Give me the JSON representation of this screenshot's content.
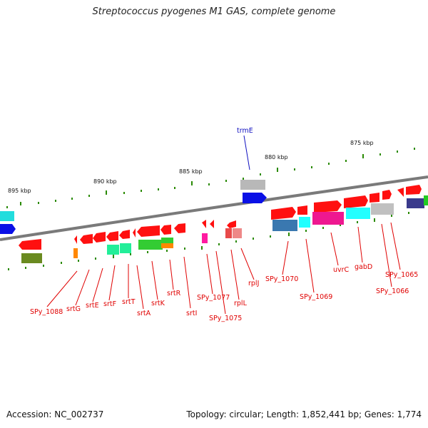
{
  "title": "Streptococcus pyogenes M1 GAS, complete genome",
  "footer": {
    "accession": "Accession: NC_002737",
    "summary": "Topology: circular; Length: 1,852,441 bp; Genes: 1,774"
  },
  "colors": {
    "forward_gene": "#ff1010",
    "backbone": "#777777",
    "tick": "#2a8a00",
    "label_red": "#e00000",
    "label_blue": "#1010c0"
  },
  "scale": {
    "labels": [
      "895 kbp",
      "890 kbp",
      "885 kbp",
      "880 kbp",
      "875 kbp"
    ]
  },
  "gene_labels": {
    "top": [
      "trmE"
    ],
    "bottom": [
      "SPy_1088",
      "srtG",
      "srtE",
      "srtF",
      "srtT",
      "srtA",
      "srtK",
      "srtR",
      "srtI",
      "SPy_1077",
      "SPy_1075",
      "rplL",
      "rplJ",
      "SPy_1070",
      "SPy_1069",
      "uvrC",
      "gabD",
      "SPy_1066",
      "SPy_1065"
    ]
  }
}
